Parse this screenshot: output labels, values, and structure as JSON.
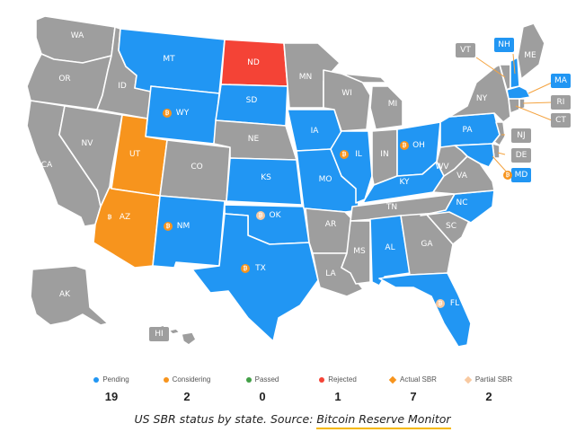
{
  "colors": {
    "pending": "#2196f3",
    "considering": "#f7941d",
    "passed": "#43a047",
    "rejected": "#f44336",
    "none": "#9e9e9e",
    "actual_sbr": "#f7941d",
    "partial_sbr": "#f8c9a0"
  },
  "states": [
    {
      "code": "WA",
      "status": "none"
    },
    {
      "code": "OR",
      "status": "none"
    },
    {
      "code": "CA",
      "status": "none"
    },
    {
      "code": "NV",
      "status": "none"
    },
    {
      "code": "ID",
      "status": "none"
    },
    {
      "code": "MT",
      "status": "pending"
    },
    {
      "code": "WY",
      "status": "pending",
      "btc": "actual"
    },
    {
      "code": "UT",
      "status": "considering"
    },
    {
      "code": "AZ",
      "status": "considering",
      "btc": "actual"
    },
    {
      "code": "CO",
      "status": "none"
    },
    {
      "code": "NM",
      "status": "pending",
      "btc": "actual"
    },
    {
      "code": "ND",
      "status": "rejected"
    },
    {
      "code": "SD",
      "status": "pending"
    },
    {
      "code": "NE",
      "status": "none"
    },
    {
      "code": "KS",
      "status": "pending"
    },
    {
      "code": "OK",
      "status": "pending",
      "btc": "partial"
    },
    {
      "code": "TX",
      "status": "pending",
      "btc": "actual"
    },
    {
      "code": "MN",
      "status": "none"
    },
    {
      "code": "IA",
      "status": "pending"
    },
    {
      "code": "MO",
      "status": "pending"
    },
    {
      "code": "AR",
      "status": "none"
    },
    {
      "code": "LA",
      "status": "none"
    },
    {
      "code": "WI",
      "status": "none"
    },
    {
      "code": "IL",
      "status": "pending",
      "btc": "actual"
    },
    {
      "code": "MI",
      "status": "none"
    },
    {
      "code": "IN",
      "status": "none"
    },
    {
      "code": "OH",
      "status": "pending",
      "btc": "actual"
    },
    {
      "code": "KY",
      "status": "pending"
    },
    {
      "code": "TN",
      "status": "none"
    },
    {
      "code": "MS",
      "status": "none"
    },
    {
      "code": "AL",
      "status": "pending"
    },
    {
      "code": "GA",
      "status": "none"
    },
    {
      "code": "FL",
      "status": "pending",
      "btc": "partial"
    },
    {
      "code": "SC",
      "status": "none"
    },
    {
      "code": "NC",
      "status": "pending"
    },
    {
      "code": "VA",
      "status": "none"
    },
    {
      "code": "WV",
      "status": "none"
    },
    {
      "code": "PA",
      "status": "pending"
    },
    {
      "code": "NY",
      "status": "none"
    },
    {
      "code": "ME",
      "status": "none"
    },
    {
      "code": "AK",
      "status": "none"
    },
    {
      "code": "HI",
      "status": "none"
    },
    {
      "code": "VT",
      "status": "none"
    },
    {
      "code": "NH",
      "status": "pending"
    },
    {
      "code": "MA",
      "status": "pending"
    },
    {
      "code": "RI",
      "status": "none"
    },
    {
      "code": "CT",
      "status": "none"
    },
    {
      "code": "NJ",
      "status": "none"
    },
    {
      "code": "DE",
      "status": "none"
    },
    {
      "code": "MD",
      "status": "pending",
      "btc": "actual"
    }
  ],
  "legend": [
    {
      "label": "Pending",
      "count": "19",
      "color": "#2196f3",
      "shape": "dot"
    },
    {
      "label": "Considering",
      "count": "2",
      "color": "#f7941d",
      "shape": "dot"
    },
    {
      "label": "Passed",
      "count": "0",
      "color": "#43a047",
      "shape": "dot"
    },
    {
      "label": "Rejected",
      "count": "1",
      "color": "#f44336",
      "shape": "dot"
    },
    {
      "label": "Actual SBR",
      "count": "7",
      "color": "#f7941d",
      "shape": "diamond"
    },
    {
      "label": "Partial SBR",
      "count": "2",
      "color": "#f8c9a0",
      "shape": "diamond"
    }
  ],
  "caption": {
    "prefix": "US SBR status by state. Source: ",
    "source": "Bitcoin Reserve Monitor"
  }
}
